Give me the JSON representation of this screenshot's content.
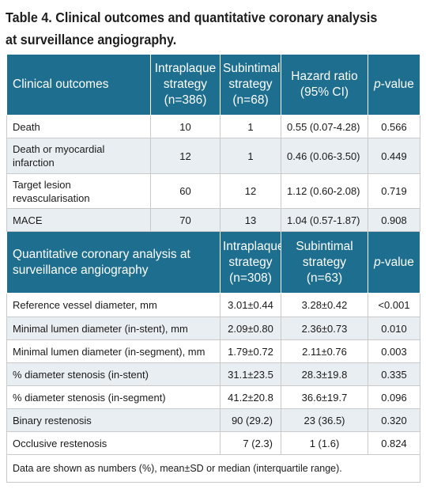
{
  "title": "Table 4. Clinical outcomes and quantitative coronary analysis at surveillance angiography.",
  "section1": {
    "header": {
      "label": "Clinical outcomes",
      "col1": "Intraplaque strategy (n=386)",
      "col2": "Subintimal strategy (n=68)",
      "col3": "Hazard ratio (95% CI)",
      "col4_italic": "p",
      "col4_rest": "-value"
    },
    "rows": [
      {
        "label": "Death",
        "intraplaque": "10",
        "subintimal": "1",
        "hr": "0.55 (0.07-4.28)",
        "p": "0.566"
      },
      {
        "label": "Death or myocardial infarction",
        "intraplaque": "12",
        "subintimal": "1",
        "hr": "0.46 (0.06-3.50)",
        "p": "0.449"
      },
      {
        "label": "Target lesion revascularisation",
        "intraplaque": "60",
        "subintimal": "12",
        "hr": "1.12 (0.60-2.08)",
        "p": "0.719"
      },
      {
        "label": "MACE",
        "intraplaque": "70",
        "subintimal": "13",
        "hr": "1.04 (0.57-1.87)",
        "p": "0.908"
      }
    ]
  },
  "section2": {
    "header": {
      "label": "Quantitative coronary analysis at surveillance angiography",
      "col1": "Intraplaque strategy (n=308)",
      "col2": "Subintimal strategy (n=63)",
      "col4_italic": "p",
      "col4_rest": "-value"
    },
    "rows": [
      {
        "label": "Reference vessel diameter, mm",
        "intraplaque": "3.01±0.44",
        "subintimal": "3.28±0.42",
        "p": "<0.001"
      },
      {
        "label": "Minimal lumen diameter (in-stent), mm",
        "intraplaque": "2.09±0.80",
        "subintimal": "2.36±0.73",
        "p": "0.010"
      },
      {
        "label": "Minimal lumen diameter (in-segment), mm",
        "intraplaque": "1.79±0.72",
        "subintimal": "2.11±0.76",
        "p": "0.003"
      },
      {
        "label": "% diameter stenosis (in-stent)",
        "intraplaque": "31.1±23.5",
        "subintimal": "28.3±19.8",
        "p": "0.335"
      },
      {
        "label": "% diameter stenosis (in-segment)",
        "intraplaque": "41.2±20.8",
        "subintimal": "36.6±19.7",
        "p": "0.096"
      },
      {
        "label": "Binary restenosis",
        "intraplaque": "90 (29.2)",
        "subintimal": "23 (36.5)",
        "p": "0.320"
      },
      {
        "label": "Occlusive restenosis",
        "intraplaque": "7 (2.3)",
        "subintimal": "1 (1.6)",
        "p": "0.824"
      }
    ]
  },
  "footnote": "Data are shown as numbers (%), mean±SD or median (interquartile range)."
}
